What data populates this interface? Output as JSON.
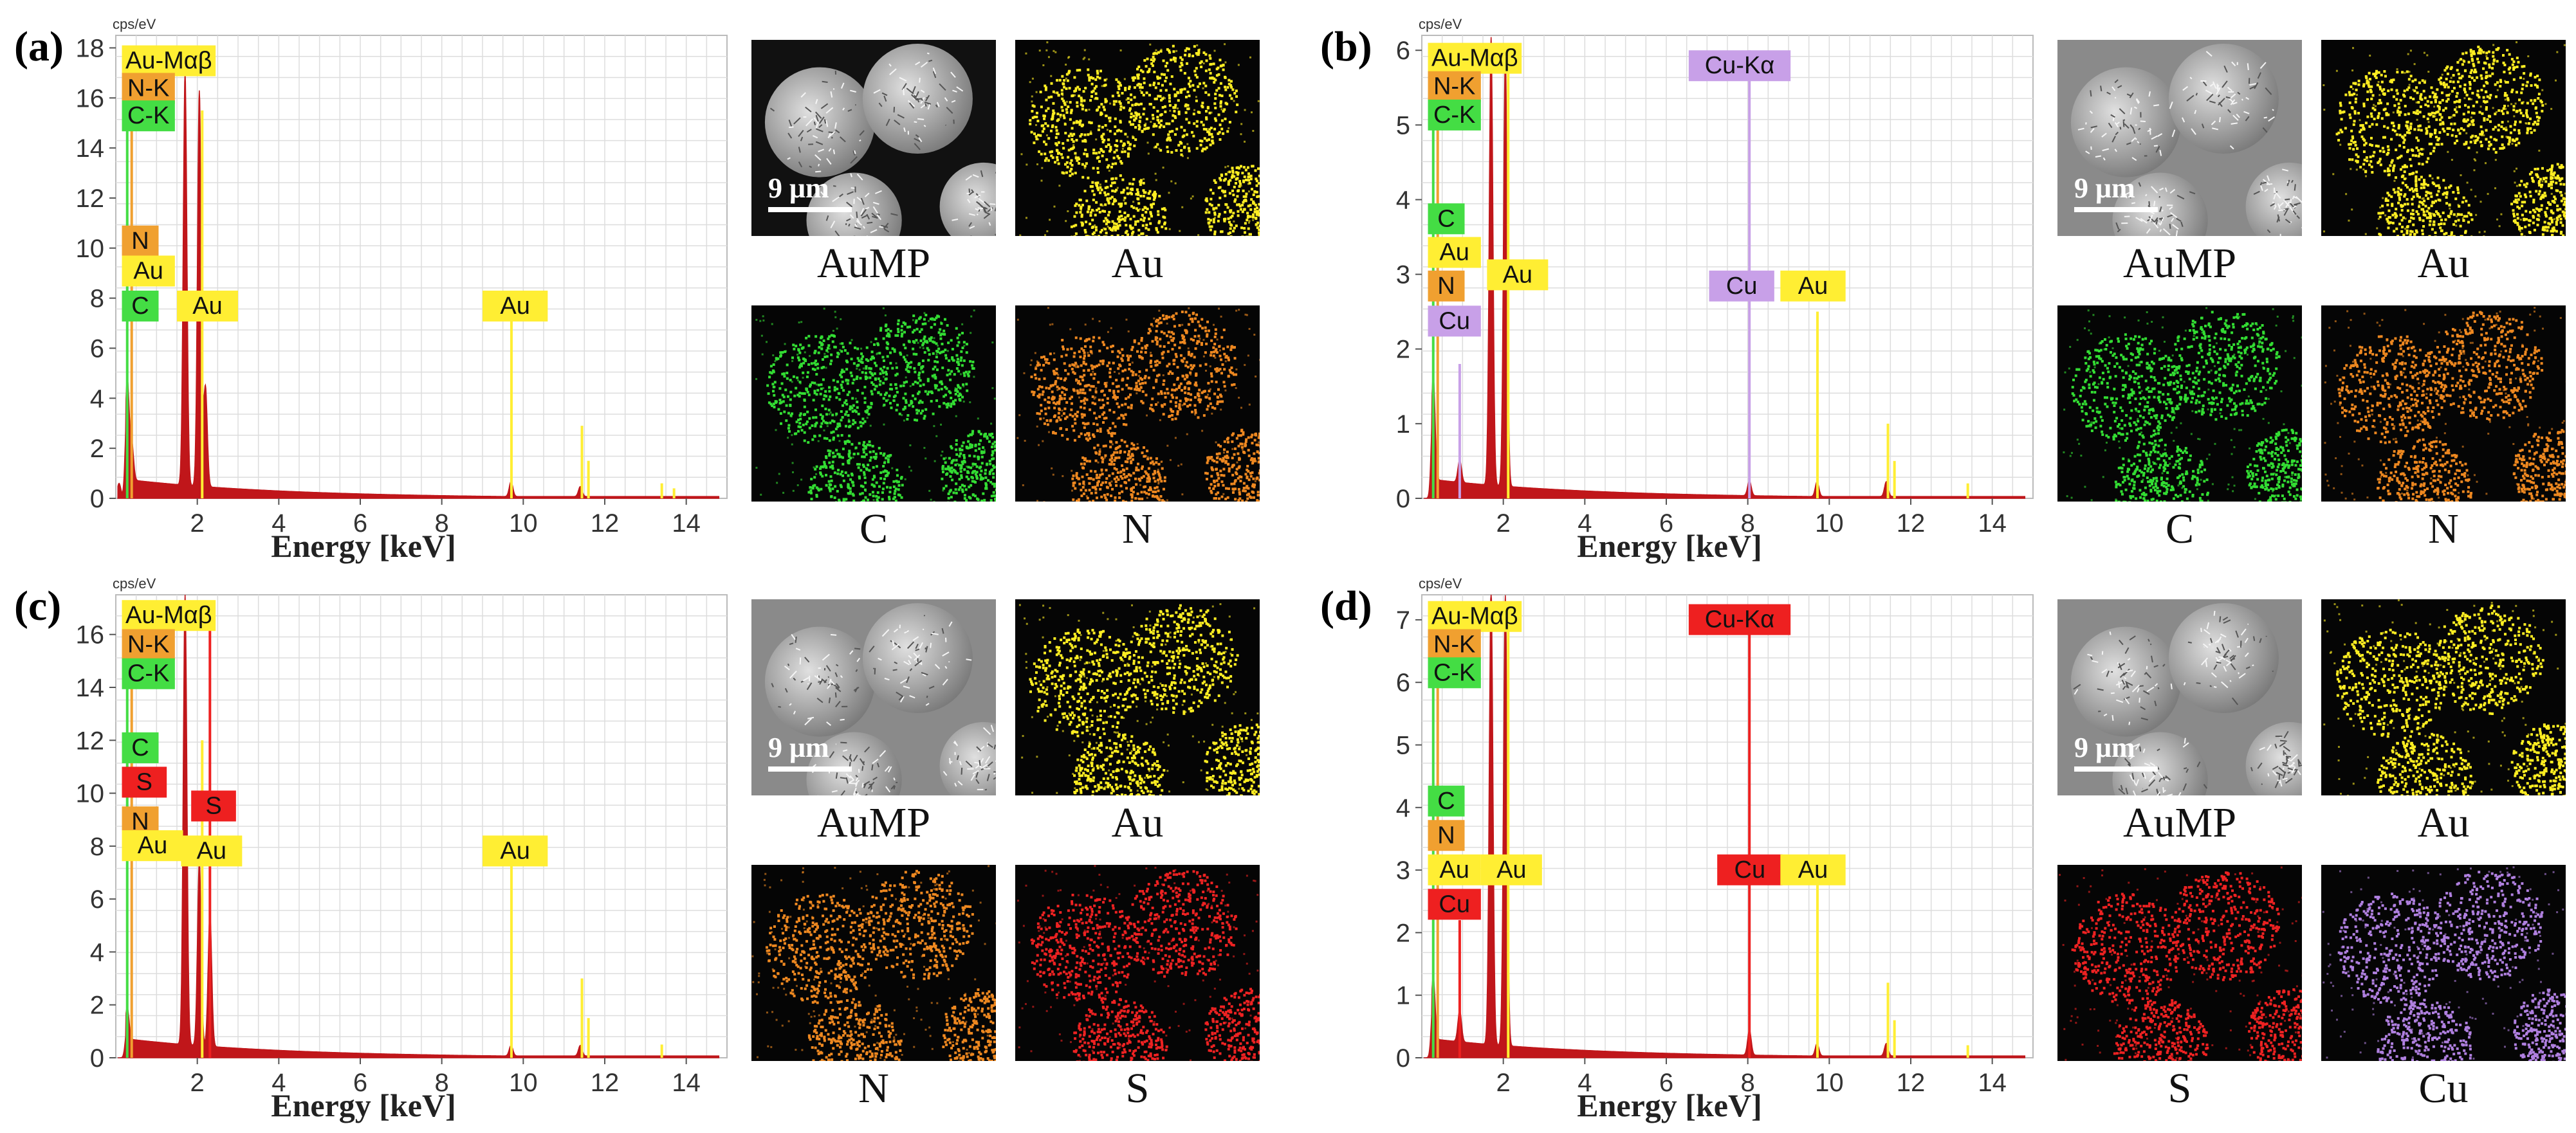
{
  "colors": {
    "spectrum": "#c0161a",
    "au": "#ffee33",
    "n": "#f0a030",
    "c": "#44dd44",
    "cu_purple": "#c8a0e8",
    "cu_red": "#ee2020",
    "s": "#ee2020",
    "grid": "#dddddd"
  },
  "panels": [
    {
      "id": "a",
      "label": "(a)",
      "unit": "cps/eV",
      "xlabel": "Energy [keV]",
      "map_captions": [
        "AuMP",
        "Au",
        "C",
        "N"
      ],
      "map_colors": [
        "sem",
        "#ffee22",
        "#33dd33",
        "#ee8820"
      ],
      "scale_text": "9 μm"
    },
    {
      "id": "b",
      "label": "(b)",
      "unit": "cps/eV",
      "xlabel": "Energy [keV]",
      "map_captions": [
        "AuMP",
        "Au",
        "C",
        "N"
      ],
      "map_colors": [
        "sem",
        "#ffee22",
        "#33dd33",
        "#ee8820"
      ],
      "scale_text": "9 μm"
    },
    {
      "id": "c",
      "label": "(c)",
      "unit": "cps/eV",
      "xlabel": "Energy [keV]",
      "map_captions": [
        "AuMP",
        "Au",
        "N",
        "S"
      ],
      "map_colors": [
        "sem",
        "#ffee22",
        "#ee8820",
        "#ee2222"
      ],
      "scale_text": "9 μm"
    },
    {
      "id": "d",
      "label": "(d)",
      "unit": "cps/eV",
      "xlabel": "Energy [keV]",
      "map_captions": [
        "AuMP",
        "Au",
        "S",
        "Cu"
      ],
      "map_colors": [
        "sem",
        "#ffee22",
        "#ee2222",
        "#b080e0"
      ],
      "scale_text": "9 μm"
    }
  ],
  "chart_data": [
    {
      "type": "area",
      "panel": "a",
      "ylabel": "cps/eV",
      "xlabel": "Energy [keV]",
      "xlim": [
        0,
        15
      ],
      "ylim": [
        0,
        18.5
      ],
      "xticks": [
        2,
        4,
        6,
        8,
        10,
        12,
        14
      ],
      "yticks": [
        0,
        2,
        4,
        6,
        8,
        10,
        12,
        14,
        16,
        18
      ],
      "peaks": [
        {
          "x": 0.08,
          "y": 0.6
        },
        {
          "x": 0.28,
          "y": 4.0
        },
        {
          "x": 0.39,
          "y": 1.5
        },
        {
          "x": 1.7,
          "y": 16.5
        },
        {
          "x": 2.05,
          "y": 15.8
        },
        {
          "x": 2.2,
          "y": 4.0
        },
        {
          "x": 9.7,
          "y": 0.6
        },
        {
          "x": 11.4,
          "y": 0.4
        }
      ],
      "lines": [
        {
          "x": 0.28,
          "color": "#44dd44",
          "top": 17
        },
        {
          "x": 0.39,
          "color": "#f0a030",
          "top": 16
        },
        {
          "x": 2.12,
          "color": "#ffee33",
          "top": 15.5
        },
        {
          "x": 9.71,
          "color": "#ffee33",
          "top": 7.3
        },
        {
          "x": 11.44,
          "color": "#ffee33",
          "top": 2.9
        },
        {
          "x": 11.6,
          "color": "#ffee33",
          "top": 1.5
        },
        {
          "x": 13.4,
          "color": "#ffee33",
          "top": 0.6
        },
        {
          "x": 13.7,
          "color": "#ffee33",
          "top": 0.4
        }
      ],
      "tags": [
        {
          "text": "Au-Mαβ",
          "x": 0.15,
          "y": 18.1,
          "color": "#ffee33",
          "w": 2.3
        },
        {
          "text": "N-K",
          "x": 0.15,
          "y": 17.0,
          "color": "#f0a030",
          "w": 1.3
        },
        {
          "text": "C-K",
          "x": 0.15,
          "y": 15.9,
          "color": "#44dd44",
          "w": 1.3
        },
        {
          "text": "N",
          "x": 0.15,
          "y": 10.9,
          "color": "#f0a030",
          "w": 0.9
        },
        {
          "text": "Au",
          "x": 0.15,
          "y": 9.7,
          "color": "#ffee33",
          "w": 1.3
        },
        {
          "text": "C",
          "x": 0.15,
          "y": 8.3,
          "color": "#44dd44",
          "w": 0.9
        },
        {
          "text": "Au",
          "x": 1.5,
          "y": 8.3,
          "color": "#ffee33",
          "w": 1.5
        },
        {
          "text": "Au",
          "x": 9.0,
          "y": 8.3,
          "color": "#ffee33",
          "w": 1.6
        }
      ]
    },
    {
      "type": "area",
      "panel": "b",
      "ylabel": "cps/eV",
      "xlabel": "Energy [keV]",
      "xlim": [
        0,
        15
      ],
      "ylim": [
        0,
        6.2
      ],
      "xticks": [
        2,
        4,
        6,
        8,
        10,
        12,
        14
      ],
      "yticks": [
        0,
        1,
        2,
        3,
        4,
        5,
        6
      ],
      "peaks": [
        {
          "x": 0.28,
          "y": 1.4
        },
        {
          "x": 0.93,
          "y": 0.3
        },
        {
          "x": 1.7,
          "y": 6.0
        },
        {
          "x": 2.05,
          "y": 5.8
        },
        {
          "x": 8.04,
          "y": 0.2
        },
        {
          "x": 9.7,
          "y": 0.2
        },
        {
          "x": 11.4,
          "y": 0.2
        }
      ],
      "lines": [
        {
          "x": 0.28,
          "color": "#44dd44",
          "top": 5.6
        },
        {
          "x": 0.39,
          "color": "#f0a030",
          "top": 5.4
        },
        {
          "x": 0.93,
          "color": "#c8a0e8",
          "top": 1.8
        },
        {
          "x": 2.12,
          "color": "#ffee33",
          "top": 5.8
        },
        {
          "x": 8.04,
          "color": "#c8a0e8",
          "top": 6.0
        },
        {
          "x": 9.71,
          "color": "#ffee33",
          "top": 2.5
        },
        {
          "x": 11.44,
          "color": "#ffee33",
          "top": 1.0
        },
        {
          "x": 11.6,
          "color": "#ffee33",
          "top": 0.5
        },
        {
          "x": 13.4,
          "color": "#ffee33",
          "top": 0.2
        }
      ],
      "tags": [
        {
          "text": "Au-Mαβ",
          "x": 0.15,
          "y": 6.1,
          "color": "#ffee33",
          "w": 2.3
        },
        {
          "text": "N-K",
          "x": 0.15,
          "y": 5.72,
          "color": "#f0a030",
          "w": 1.3
        },
        {
          "text": "C-K",
          "x": 0.15,
          "y": 5.34,
          "color": "#44dd44",
          "w": 1.3
        },
        {
          "text": "Cu-Kα",
          "x": 6.55,
          "y": 6.0,
          "color": "#c8a0e8",
          "w": 2.5
        },
        {
          "text": "C",
          "x": 0.15,
          "y": 3.95,
          "color": "#44dd44",
          "w": 0.9
        },
        {
          "text": "Au",
          "x": 0.15,
          "y": 3.5,
          "color": "#ffee33",
          "w": 1.3
        },
        {
          "text": "N",
          "x": 0.15,
          "y": 3.05,
          "color": "#f0a030",
          "w": 0.9
        },
        {
          "text": "Cu",
          "x": 0.15,
          "y": 2.58,
          "color": "#c8a0e8",
          "w": 1.3
        },
        {
          "text": "Au",
          "x": 1.6,
          "y": 3.2,
          "color": "#ffee33",
          "w": 1.5
        },
        {
          "text": "Cu",
          "x": 7.05,
          "y": 3.05,
          "color": "#c8a0e8",
          "w": 1.6
        },
        {
          "text": "Au",
          "x": 8.8,
          "y": 3.05,
          "color": "#ffee33",
          "w": 1.6
        }
      ]
    },
    {
      "type": "area",
      "panel": "c",
      "ylabel": "cps/eV",
      "xlabel": "Energy [keV]",
      "xlim": [
        0,
        15
      ],
      "ylim": [
        0,
        17.5
      ],
      "xticks": [
        2,
        4,
        6,
        8,
        10,
        12,
        14
      ],
      "yticks": [
        0,
        2,
        4,
        6,
        8,
        10,
        12,
        14,
        16
      ],
      "peaks": [
        {
          "x": 0.28,
          "y": 1.2
        },
        {
          "x": 1.7,
          "y": 17.0
        },
        {
          "x": 2.05,
          "y": 7.0
        },
        {
          "x": 2.31,
          "y": 5.0
        },
        {
          "x": 9.7,
          "y": 0.4
        },
        {
          "x": 11.4,
          "y": 0.4
        }
      ],
      "lines": [
        {
          "x": 0.28,
          "color": "#44dd44",
          "top": 16.5
        },
        {
          "x": 0.39,
          "color": "#f0a030",
          "top": 16
        },
        {
          "x": 2.12,
          "color": "#ffee33",
          "top": 12
        },
        {
          "x": 2.31,
          "color": "#ee2020",
          "top": 17
        },
        {
          "x": 9.71,
          "color": "#ffee33",
          "top": 7.5
        },
        {
          "x": 11.44,
          "color": "#ffee33",
          "top": 3.0
        },
        {
          "x": 11.6,
          "color": "#ffee33",
          "top": 1.5
        },
        {
          "x": 13.4,
          "color": "#ffee33",
          "top": 0.5
        }
      ],
      "tags": [
        {
          "text": "Au-Mαβ",
          "x": 0.15,
          "y": 17.3,
          "color": "#ffee33",
          "w": 2.3
        },
        {
          "text": "N-K",
          "x": 0.15,
          "y": 16.2,
          "color": "#f0a030",
          "w": 1.3
        },
        {
          "text": "C-K",
          "x": 0.15,
          "y": 15.1,
          "color": "#44dd44",
          "w": 1.3
        },
        {
          "text": "C",
          "x": 0.15,
          "y": 12.3,
          "color": "#44dd44",
          "w": 0.9
        },
        {
          "text": "S",
          "x": 0.15,
          "y": 11.0,
          "color": "#ee2020",
          "w": 1.1
        },
        {
          "text": "N",
          "x": 0.15,
          "y": 9.5,
          "color": "#f0a030",
          "w": 0.9
        },
        {
          "text": "S",
          "x": 1.85,
          "y": 10.1,
          "color": "#ee2020",
          "w": 1.1
        },
        {
          "text": "Au",
          "x": 0.15,
          "y": 8.6,
          "color": "#ffee33",
          "w": 1.5
        },
        {
          "text": "Au",
          "x": 1.6,
          "y": 8.4,
          "color": "#ffee33",
          "w": 1.5
        },
        {
          "text": "Au",
          "x": 9.0,
          "y": 8.4,
          "color": "#ffee33",
          "w": 1.6
        }
      ]
    },
    {
      "type": "area",
      "panel": "d",
      "ylabel": "cps/eV",
      "xlabel": "Energy [keV]",
      "xlim": [
        0,
        15
      ],
      "ylim": [
        0,
        7.4
      ],
      "xticks": [
        2,
        4,
        6,
        8,
        10,
        12,
        14
      ],
      "yticks": [
        0,
        1,
        2,
        3,
        4,
        5,
        6,
        7
      ],
      "peaks": [
        {
          "x": 0.28,
          "y": 1.0
        },
        {
          "x": 0.93,
          "y": 0.5
        },
        {
          "x": 1.7,
          "y": 7.3
        },
        {
          "x": 2.05,
          "y": 7.2
        },
        {
          "x": 8.04,
          "y": 0.4
        },
        {
          "x": 9.7,
          "y": 0.2
        },
        {
          "x": 11.4,
          "y": 0.2
        }
      ],
      "lines": [
        {
          "x": 0.28,
          "color": "#44dd44",
          "top": 6.6
        },
        {
          "x": 0.39,
          "color": "#f0a030",
          "top": 6.3
        },
        {
          "x": 0.93,
          "color": "#ee2020",
          "top": 2.2
        },
        {
          "x": 2.12,
          "color": "#ffee33",
          "top": 7.2
        },
        {
          "x": 8.04,
          "color": "#ee2020",
          "top": 7.2
        },
        {
          "x": 9.71,
          "color": "#ffee33",
          "top": 3.0
        },
        {
          "x": 11.44,
          "color": "#ffee33",
          "top": 1.2
        },
        {
          "x": 11.6,
          "color": "#ffee33",
          "top": 0.6
        },
        {
          "x": 13.4,
          "color": "#ffee33",
          "top": 0.2
        }
      ],
      "tags": [
        {
          "text": "Au-Mαβ",
          "x": 0.15,
          "y": 7.3,
          "color": "#ffee33",
          "w": 2.3
        },
        {
          "text": "N-K",
          "x": 0.15,
          "y": 6.85,
          "color": "#f0a030",
          "w": 1.3
        },
        {
          "text": "C-K",
          "x": 0.15,
          "y": 6.4,
          "color": "#44dd44",
          "w": 1.3
        },
        {
          "text": "Cu-Kα",
          "x": 6.55,
          "y": 7.25,
          "color": "#ee2020",
          "w": 2.5
        },
        {
          "text": "C",
          "x": 0.15,
          "y": 4.35,
          "color": "#44dd44",
          "w": 0.9
        },
        {
          "text": "N",
          "x": 0.15,
          "y": 3.8,
          "color": "#f0a030",
          "w": 0.9
        },
        {
          "text": "Au",
          "x": 0.15,
          "y": 3.25,
          "color": "#ffee33",
          "w": 1.3
        },
        {
          "text": "Au",
          "x": 1.45,
          "y": 3.25,
          "color": "#ffee33",
          "w": 1.5
        },
        {
          "text": "Cu",
          "x": 0.15,
          "y": 2.7,
          "color": "#ee2020",
          "w": 1.3
        },
        {
          "text": "Cu",
          "x": 7.25,
          "y": 3.25,
          "color": "#ee2020",
          "w": 1.6
        },
        {
          "text": "Au",
          "x": 8.8,
          "y": 3.25,
          "color": "#ffee33",
          "w": 1.6
        }
      ]
    }
  ]
}
